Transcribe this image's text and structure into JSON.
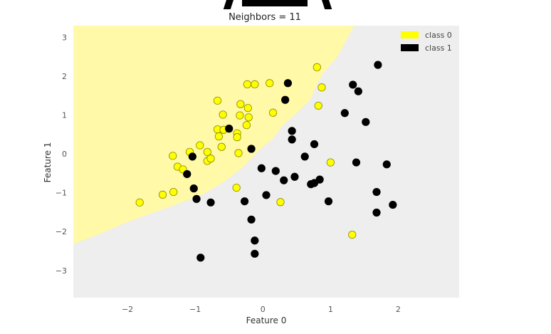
{
  "chart_data": {
    "type": "scatter",
    "title": "Neighbors = 11",
    "xlabel": "Feature 0",
    "ylabel": "Feature 1",
    "xlim": [
      -2.8,
      2.9
    ],
    "ylim": [
      -3.7,
      3.3
    ],
    "xticks": [
      -2,
      -1,
      0,
      1,
      2
    ],
    "yticks": [
      -3,
      -2,
      -1,
      0,
      1,
      2,
      3
    ],
    "xtick_labels": [
      "−2",
      "−1",
      "0",
      "1",
      "2"
    ],
    "ytick_labels": [
      "−3",
      "−2",
      "−1",
      "0",
      "1",
      "2",
      "3"
    ],
    "grid": false,
    "legend_position": "top-right",
    "background_region_colors": {
      "class 0": "#fff9a8",
      "class 1": "#eeeeee"
    },
    "decision_boundary": [
      [
        -2.8,
        -2.32
      ],
      [
        -2.4,
        -2.05
      ],
      [
        -2.0,
        -1.75
      ],
      [
        -1.6,
        -1.5
      ],
      [
        -1.2,
        -1.25
      ],
      [
        -0.9,
        -1.05
      ],
      [
        -0.6,
        -0.75
      ],
      [
        -0.3,
        -0.35
      ],
      [
        -0.05,
        0.1
      ],
      [
        0.15,
        0.4
      ],
      [
        0.3,
        0.75
      ],
      [
        0.5,
        1.05
      ],
      [
        0.7,
        1.4
      ],
      [
        0.8,
        1.8
      ],
      [
        0.9,
        2.1
      ],
      [
        1.1,
        2.5
      ],
      [
        1.35,
        3.3
      ]
    ],
    "series": [
      {
        "name": "class 0",
        "color": "#ffff00",
        "points": [
          [
            -1.82,
            -1.25
          ],
          [
            -1.48,
            -1.05
          ],
          [
            -1.32,
            -0.98
          ],
          [
            -1.33,
            -0.05
          ],
          [
            -1.26,
            -0.33
          ],
          [
            -1.18,
            -0.4
          ],
          [
            -1.08,
            0.05
          ],
          [
            -0.93,
            0.22
          ],
          [
            -0.82,
            0.05
          ],
          [
            -0.82,
            -0.18
          ],
          [
            -0.77,
            -0.12
          ],
          [
            -0.67,
            0.63
          ],
          [
            -0.65,
            0.45
          ],
          [
            -0.67,
            1.37
          ],
          [
            -0.61,
            0.18
          ],
          [
            -0.58,
            0.62
          ],
          [
            -0.59,
            1.01
          ],
          [
            -0.38,
            0.53
          ],
          [
            -0.38,
            0.43
          ],
          [
            -0.36,
            0.02
          ],
          [
            -0.34,
            0.99
          ],
          [
            -0.33,
            1.28
          ],
          [
            -0.24,
            0.74
          ],
          [
            -0.21,
            0.94
          ],
          [
            -0.22,
            1.18
          ],
          [
            -0.23,
            1.79
          ],
          [
            -0.12,
            1.79
          ],
          [
            -0.39,
            -0.87
          ],
          [
            0.1,
            1.82
          ],
          [
            0.15,
            1.06
          ],
          [
            0.8,
            2.23
          ],
          [
            0.82,
            1.24
          ],
          [
            0.87,
            1.71
          ],
          [
            1.0,
            -0.22
          ],
          [
            1.32,
            -2.08
          ],
          [
            0.26,
            -1.24
          ]
        ]
      },
      {
        "name": "class 1",
        "color": "#000000",
        "points": [
          [
            -1.12,
            -0.52
          ],
          [
            -1.04,
            -0.07
          ],
          [
            -1.02,
            -0.89
          ],
          [
            -0.98,
            -1.16
          ],
          [
            -0.92,
            -2.67
          ],
          [
            -0.77,
            -1.25
          ],
          [
            -0.5,
            0.65
          ],
          [
            -0.27,
            -1.22
          ],
          [
            -0.17,
            0.13
          ],
          [
            -0.17,
            -1.69
          ],
          [
            -0.12,
            -2.23
          ],
          [
            -0.12,
            -2.57
          ],
          [
            -0.02,
            -0.37
          ],
          [
            0.05,
            -1.06
          ],
          [
            0.19,
            -0.44
          ],
          [
            0.31,
            -0.68
          ],
          [
            0.33,
            1.39
          ],
          [
            0.37,
            1.82
          ],
          [
            0.43,
            0.59
          ],
          [
            0.43,
            0.37
          ],
          [
            0.47,
            -0.59
          ],
          [
            0.62,
            -0.07
          ],
          [
            0.71,
            -0.78
          ],
          [
            0.76,
            -0.75
          ],
          [
            0.76,
            0.25
          ],
          [
            0.84,
            -0.66
          ],
          [
            0.97,
            -1.22
          ],
          [
            1.21,
            1.05
          ],
          [
            1.33,
            1.78
          ],
          [
            1.41,
            1.61
          ],
          [
            1.38,
            -0.22
          ],
          [
            1.52,
            0.82
          ],
          [
            1.7,
            2.29
          ],
          [
            1.68,
            -0.98
          ],
          [
            1.68,
            -1.51
          ],
          [
            1.83,
            -0.27
          ],
          [
            1.92,
            -1.31
          ]
        ]
      }
    ]
  }
}
